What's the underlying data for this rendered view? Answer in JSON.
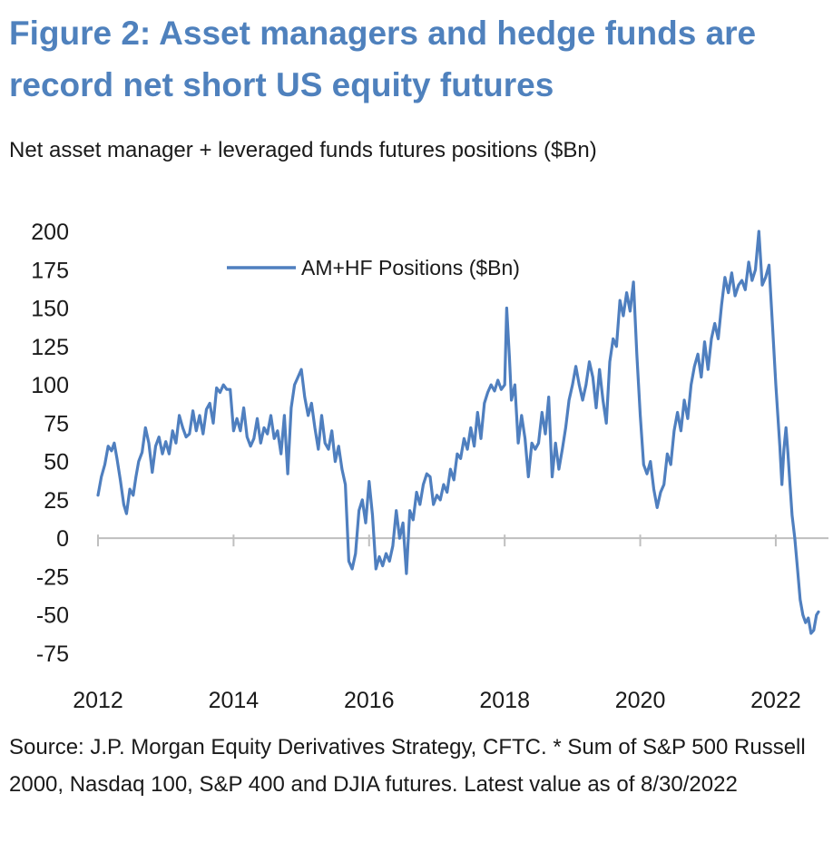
{
  "header": {
    "title": "Figure 2: Asset managers and hedge funds are record net short US equity futures",
    "subtitle": "Net asset manager + leveraged funds futures positions ($Bn)"
  },
  "footer": {
    "source": "Source: J.P. Morgan Equity Derivatives Strategy, CFTC. * Sum of S&P 500 Russell 2000, Nasdaq 100, S&P 400 and DJIA futures. Latest value as of 8/30/2022"
  },
  "colors": {
    "title": "#4f81bd",
    "series": "#4f7fbf",
    "axis": "#bfbfbf"
  },
  "chart_data": {
    "type": "line",
    "title": "",
    "xlabel": "",
    "ylabel": "",
    "xlim": [
      2012,
      2022.67
    ],
    "ylim": [
      -75,
      200
    ],
    "yticks": [
      200,
      175,
      150,
      125,
      100,
      75,
      50,
      25,
      0,
      -25,
      -50,
      -75
    ],
    "xticks": [
      2012,
      2014,
      2016,
      2018,
      2020,
      2022
    ],
    "legend": {
      "position": "top-center"
    },
    "series": [
      {
        "name": "AM+HF Positions ($Bn)",
        "points": [
          [
            2012.0,
            28
          ],
          [
            2012.05,
            40
          ],
          [
            2012.1,
            48
          ],
          [
            2012.15,
            60
          ],
          [
            2012.2,
            57
          ],
          [
            2012.24,
            62
          ],
          [
            2012.28,
            52
          ],
          [
            2012.33,
            38
          ],
          [
            2012.38,
            22
          ],
          [
            2012.42,
            16
          ],
          [
            2012.47,
            32
          ],
          [
            2012.52,
            28
          ],
          [
            2012.56,
            40
          ],
          [
            2012.6,
            50
          ],
          [
            2012.65,
            56
          ],
          [
            2012.7,
            72
          ],
          [
            2012.75,
            62
          ],
          [
            2012.8,
            43
          ],
          [
            2012.85,
            60
          ],
          [
            2012.9,
            66
          ],
          [
            2012.95,
            55
          ],
          [
            2013.0,
            63
          ],
          [
            2013.05,
            55
          ],
          [
            2013.1,
            70
          ],
          [
            2013.15,
            62
          ],
          [
            2013.2,
            80
          ],
          [
            2013.25,
            72
          ],
          [
            2013.3,
            66
          ],
          [
            2013.35,
            68
          ],
          [
            2013.4,
            83
          ],
          [
            2013.45,
            70
          ],
          [
            2013.5,
            80
          ],
          [
            2013.55,
            68
          ],
          [
            2013.6,
            84
          ],
          [
            2013.65,
            88
          ],
          [
            2013.7,
            75
          ],
          [
            2013.75,
            98
          ],
          [
            2013.8,
            95
          ],
          [
            2013.85,
            100
          ],
          [
            2013.9,
            97
          ],
          [
            2013.95,
            97
          ],
          [
            2014.0,
            70
          ],
          [
            2014.05,
            78
          ],
          [
            2014.1,
            70
          ],
          [
            2014.15,
            85
          ],
          [
            2014.2,
            66
          ],
          [
            2014.25,
            60
          ],
          [
            2014.3,
            65
          ],
          [
            2014.35,
            78
          ],
          [
            2014.4,
            62
          ],
          [
            2014.45,
            72
          ],
          [
            2014.5,
            68
          ],
          [
            2014.55,
            80
          ],
          [
            2014.6,
            65
          ],
          [
            2014.65,
            70
          ],
          [
            2014.7,
            55
          ],
          [
            2014.75,
            80
          ],
          [
            2014.8,
            42
          ],
          [
            2014.85,
            85
          ],
          [
            2014.9,
            100
          ],
          [
            2014.95,
            105
          ],
          [
            2015.0,
            110
          ],
          [
            2015.05,
            92
          ],
          [
            2015.1,
            80
          ],
          [
            2015.15,
            88
          ],
          [
            2015.2,
            72
          ],
          [
            2015.25,
            58
          ],
          [
            2015.3,
            80
          ],
          [
            2015.35,
            62
          ],
          [
            2015.4,
            58
          ],
          [
            2015.45,
            70
          ],
          [
            2015.5,
            50
          ],
          [
            2015.55,
            60
          ],
          [
            2015.6,
            45
          ],
          [
            2015.65,
            35
          ],
          [
            2015.7,
            -15
          ],
          [
            2015.75,
            -20
          ],
          [
            2015.8,
            -10
          ],
          [
            2015.85,
            18
          ],
          [
            2015.9,
            25
          ],
          [
            2015.95,
            10
          ],
          [
            2016.0,
            37
          ],
          [
            2016.05,
            15
          ],
          [
            2016.1,
            -20
          ],
          [
            2016.15,
            -12
          ],
          [
            2016.2,
            -18
          ],
          [
            2016.25,
            -10
          ],
          [
            2016.3,
            -15
          ],
          [
            2016.35,
            -5
          ],
          [
            2016.4,
            18
          ],
          [
            2016.45,
            0
          ],
          [
            2016.5,
            10
          ],
          [
            2016.55,
            -23
          ],
          [
            2016.6,
            18
          ],
          [
            2016.65,
            12
          ],
          [
            2016.7,
            30
          ],
          [
            2016.75,
            22
          ],
          [
            2016.8,
            35
          ],
          [
            2016.85,
            42
          ],
          [
            2016.9,
            40
          ],
          [
            2016.95,
            22
          ],
          [
            2017.0,
            28
          ],
          [
            2017.05,
            25
          ],
          [
            2017.1,
            35
          ],
          [
            2017.15,
            30
          ],
          [
            2017.2,
            45
          ],
          [
            2017.25,
            38
          ],
          [
            2017.3,
            55
          ],
          [
            2017.35,
            52
          ],
          [
            2017.4,
            65
          ],
          [
            2017.45,
            58
          ],
          [
            2017.5,
            72
          ],
          [
            2017.55,
            60
          ],
          [
            2017.6,
            82
          ],
          [
            2017.65,
            65
          ],
          [
            2017.7,
            88
          ],
          [
            2017.75,
            95
          ],
          [
            2017.8,
            100
          ],
          [
            2017.85,
            96
          ],
          [
            2017.9,
            103
          ],
          [
            2017.95,
            97
          ],
          [
            2018.0,
            100
          ],
          [
            2018.03,
            150
          ],
          [
            2018.07,
            118
          ],
          [
            2018.1,
            90
          ],
          [
            2018.15,
            100
          ],
          [
            2018.2,
            62
          ],
          [
            2018.25,
            80
          ],
          [
            2018.3,
            65
          ],
          [
            2018.35,
            40
          ],
          [
            2018.4,
            62
          ],
          [
            2018.45,
            58
          ],
          [
            2018.5,
            62
          ],
          [
            2018.55,
            82
          ],
          [
            2018.6,
            68
          ],
          [
            2018.65,
            92
          ],
          [
            2018.7,
            40
          ],
          [
            2018.75,
            62
          ],
          [
            2018.8,
            45
          ],
          [
            2018.85,
            58
          ],
          [
            2018.9,
            72
          ],
          [
            2018.95,
            90
          ],
          [
            2019.0,
            100
          ],
          [
            2019.05,
            112
          ],
          [
            2019.1,
            100
          ],
          [
            2019.15,
            90
          ],
          [
            2019.2,
            100
          ],
          [
            2019.25,
            115
          ],
          [
            2019.3,
            105
          ],
          [
            2019.35,
            85
          ],
          [
            2019.4,
            110
          ],
          [
            2019.45,
            90
          ],
          [
            2019.5,
            75
          ],
          [
            2019.55,
            115
          ],
          [
            2019.6,
            130
          ],
          [
            2019.65,
            125
          ],
          [
            2019.7,
            155
          ],
          [
            2019.75,
            145
          ],
          [
            2019.8,
            160
          ],
          [
            2019.85,
            148
          ],
          [
            2019.9,
            167
          ],
          [
            2019.95,
            120
          ],
          [
            2020.0,
            80
          ],
          [
            2020.05,
            48
          ],
          [
            2020.1,
            42
          ],
          [
            2020.15,
            50
          ],
          [
            2020.2,
            32
          ],
          [
            2020.25,
            20
          ],
          [
            2020.3,
            30
          ],
          [
            2020.35,
            35
          ],
          [
            2020.4,
            55
          ],
          [
            2020.45,
            48
          ],
          [
            2020.5,
            70
          ],
          [
            2020.55,
            82
          ],
          [
            2020.6,
            70
          ],
          [
            2020.65,
            90
          ],
          [
            2020.7,
            78
          ],
          [
            2020.75,
            100
          ],
          [
            2020.8,
            112
          ],
          [
            2020.85,
            120
          ],
          [
            2020.9,
            105
          ],
          [
            2020.95,
            128
          ],
          [
            2021.0,
            110
          ],
          [
            2021.05,
            130
          ],
          [
            2021.1,
            140
          ],
          [
            2021.15,
            130
          ],
          [
            2021.2,
            152
          ],
          [
            2021.25,
            170
          ],
          [
            2021.3,
            160
          ],
          [
            2021.35,
            173
          ],
          [
            2021.4,
            158
          ],
          [
            2021.45,
            165
          ],
          [
            2021.5,
            168
          ],
          [
            2021.55,
            162
          ],
          [
            2021.6,
            180
          ],
          [
            2021.65,
            168
          ],
          [
            2021.7,
            175
          ],
          [
            2021.75,
            200
          ],
          [
            2021.8,
            165
          ],
          [
            2021.85,
            170
          ],
          [
            2021.9,
            178
          ],
          [
            2021.95,
            140
          ],
          [
            2022.0,
            100
          ],
          [
            2022.03,
            80
          ],
          [
            2022.06,
            60
          ],
          [
            2022.09,
            35
          ],
          [
            2022.12,
            58
          ],
          [
            2022.15,
            72
          ],
          [
            2022.18,
            55
          ],
          [
            2022.21,
            35
          ],
          [
            2022.24,
            15
          ],
          [
            2022.28,
            0
          ],
          [
            2022.32,
            -20
          ],
          [
            2022.36,
            -40
          ],
          [
            2022.4,
            -50
          ],
          [
            2022.44,
            -55
          ],
          [
            2022.48,
            -52
          ],
          [
            2022.52,
            -62
          ],
          [
            2022.56,
            -60
          ],
          [
            2022.6,
            -50
          ],
          [
            2022.63,
            -48
          ]
        ]
      }
    ]
  }
}
